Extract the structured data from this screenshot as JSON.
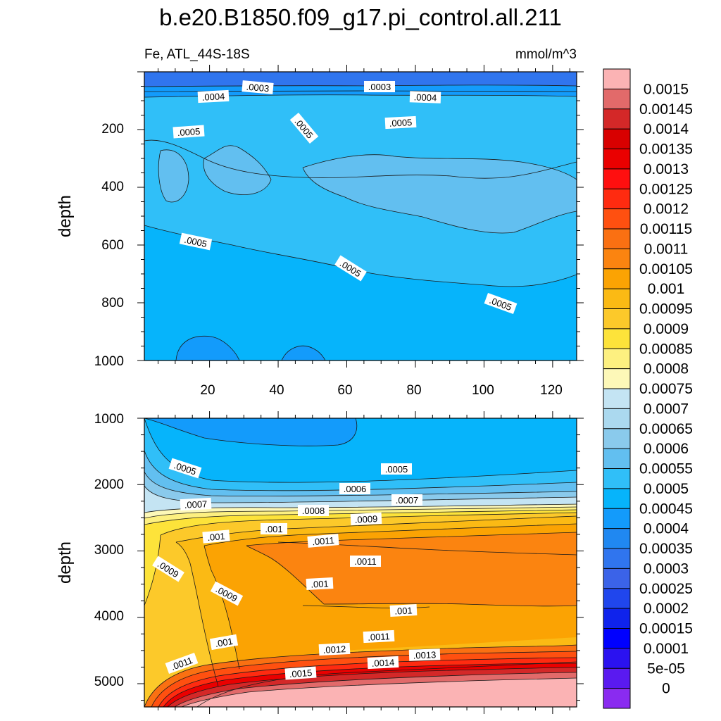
{
  "chart_data": {
    "type": "heatmap",
    "title": "b.e20.B1850.f09_g17.pi_control.all.211",
    "left_subtitle": "Fe, ATL_44S-18S",
    "right_subtitle": "mmol/m^3",
    "x_range": [
      1,
      127
    ],
    "top_panel": {
      "ylabel": "depth",
      "ylim": [
        1000,
        0
      ],
      "xticks": [
        "20",
        "40",
        "60",
        "80",
        "100",
        "120"
      ],
      "yticks": [
        "200",
        "400",
        "600",
        "800",
        "1000"
      ],
      "contour_labels": [
        ".0003",
        ".0003",
        ".0004",
        ".0004",
        ".0005",
        ".0005",
        ".0005",
        ".0005",
        ".0005",
        ".0005"
      ]
    },
    "bottom_panel": {
      "ylabel": "depth",
      "ylim": [
        5350,
        1000
      ],
      "yticks": [
        "1000",
        "2000",
        "3000",
        "4000",
        "5000"
      ],
      "contour_labels": [
        ".0005",
        ".0005",
        ".0006",
        ".0007",
        ".0007",
        ".0008",
        ".0009",
        ".001",
        ".001",
        ".0011",
        ".0011",
        ".0009",
        ".0009",
        ".001",
        ".001",
        ".001",
        ".0011",
        ".0011",
        ".0012",
        ".0013",
        ".0014",
        ".0015"
      ]
    },
    "colorbar": {
      "levels": [
        "0.0015",
        "0.00145",
        "0.0014",
        "0.00135",
        "0.0013",
        "0.00125",
        "0.0012",
        "0.00115",
        "0.0011",
        "0.00105",
        "0.001",
        "0.00095",
        "0.0009",
        "0.00085",
        "0.0008",
        "0.00075",
        "0.0007",
        "0.00065",
        "0.0006",
        "0.00055",
        "0.0005",
        "0.00045",
        "0.0004",
        "0.00035",
        "0.0003",
        "0.00025",
        "0.0002",
        "0.00015",
        "0.0001",
        "5e-05",
        "0"
      ],
      "colors": [
        "#fbb3b4",
        "#e26a6a",
        "#d42828",
        "#d80000",
        "#ea0000",
        "#ff0f0f",
        "#ff2b10",
        "#ff5010",
        "#fa7012",
        "#fb8410",
        "#fba303",
        "#fbba14",
        "#fcc92a",
        "#fde33a",
        "#fdf080",
        "#fdf8b8",
        "#c4e4f3",
        "#abd9ef",
        "#8acaec",
        "#62bff0",
        "#30bff8",
        "#06b4fb",
        "#139bfb",
        "#2088f1",
        "#3075ee",
        "#3b63e8",
        "#2046ed",
        "#0f23ec",
        "#0000ff",
        "#2b12f0",
        "#5a1af0",
        "#8a2bf0"
      ]
    }
  }
}
